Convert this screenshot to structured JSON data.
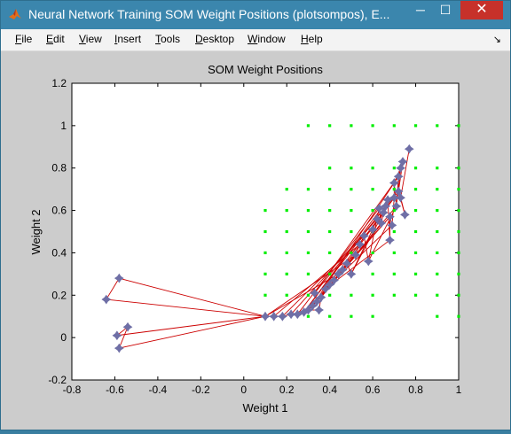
{
  "window": {
    "title": "Neural Network Training SOM Weight Positions (plotsompos), E...",
    "minimize": "─",
    "maximize": "☐",
    "close": "✕"
  },
  "menu": {
    "items": [
      {
        "key": "F",
        "rest": "ile"
      },
      {
        "key": "E",
        "rest": "dit"
      },
      {
        "key": "V",
        "rest": "iew"
      },
      {
        "key": "I",
        "rest": "nsert"
      },
      {
        "key": "T",
        "rest": "ools"
      },
      {
        "key": "D",
        "rest": "esktop"
      },
      {
        "key": "W",
        "rest": "indow"
      },
      {
        "key": "H",
        "rest": "elp"
      }
    ],
    "corner_arrow": "↘"
  },
  "chart_data": {
    "type": "scatter",
    "title": "SOM Weight Positions",
    "xlabel": "Weight 1",
    "ylabel": "Weight 2",
    "xlim": [
      -0.8,
      1
    ],
    "ylim": [
      -0.2,
      1.2
    ],
    "xticks": [
      "-0.8",
      "-0.6",
      "-0.4",
      "-0.2",
      "0",
      "0.2",
      "0.4",
      "0.6",
      "0.8",
      "1"
    ],
    "yticks": [
      "-0.2",
      "0",
      "0.2",
      "0.4",
      "0.6",
      "0.8",
      "1",
      "1.2"
    ],
    "colors": {
      "inputs": "#00ee00",
      "neurons": "#6f6fa6",
      "links": "#cc0000"
    },
    "input_points": [
      [
        0.3,
        1.0
      ],
      [
        0.4,
        1.0
      ],
      [
        0.5,
        1.0
      ],
      [
        0.6,
        1.0
      ],
      [
        0.7,
        1.0
      ],
      [
        0.8,
        1.0
      ],
      [
        0.9,
        1.0
      ],
      [
        1.0,
        1.0
      ],
      [
        0.4,
        0.8
      ],
      [
        0.5,
        0.8
      ],
      [
        0.6,
        0.8
      ],
      [
        0.7,
        0.8
      ],
      [
        0.8,
        0.8
      ],
      [
        0.9,
        0.8
      ],
      [
        1.0,
        0.8
      ],
      [
        0.2,
        0.7
      ],
      [
        0.3,
        0.7
      ],
      [
        0.4,
        0.7
      ],
      [
        0.5,
        0.7
      ],
      [
        0.6,
        0.7
      ],
      [
        0.7,
        0.7
      ],
      [
        0.8,
        0.7
      ],
      [
        0.9,
        0.7
      ],
      [
        1.0,
        0.7
      ],
      [
        0.1,
        0.6
      ],
      [
        0.2,
        0.6
      ],
      [
        0.3,
        0.6
      ],
      [
        0.4,
        0.6
      ],
      [
        0.5,
        0.6
      ],
      [
        0.6,
        0.6
      ],
      [
        0.7,
        0.6
      ],
      [
        0.8,
        0.6
      ],
      [
        0.9,
        0.6
      ],
      [
        1.0,
        0.6
      ],
      [
        0.1,
        0.5
      ],
      [
        0.2,
        0.5
      ],
      [
        0.3,
        0.5
      ],
      [
        0.4,
        0.5
      ],
      [
        0.5,
        0.5
      ],
      [
        0.6,
        0.5
      ],
      [
        0.7,
        0.5
      ],
      [
        0.8,
        0.5
      ],
      [
        0.9,
        0.5
      ],
      [
        1.0,
        0.5
      ],
      [
        0.1,
        0.4
      ],
      [
        0.2,
        0.4
      ],
      [
        0.3,
        0.4
      ],
      [
        0.4,
        0.4
      ],
      [
        0.5,
        0.4
      ],
      [
        0.6,
        0.4
      ],
      [
        0.7,
        0.4
      ],
      [
        0.8,
        0.4
      ],
      [
        0.9,
        0.4
      ],
      [
        1.0,
        0.4
      ],
      [
        0.1,
        0.3
      ],
      [
        0.2,
        0.3
      ],
      [
        0.3,
        0.3
      ],
      [
        0.4,
        0.3
      ],
      [
        0.5,
        0.3
      ],
      [
        0.6,
        0.3
      ],
      [
        0.7,
        0.3
      ],
      [
        0.8,
        0.3
      ],
      [
        0.9,
        0.3
      ],
      [
        1.0,
        0.3
      ],
      [
        0.1,
        0.2
      ],
      [
        0.2,
        0.2
      ],
      [
        0.3,
        0.2
      ],
      [
        0.4,
        0.2
      ],
      [
        0.5,
        0.2
      ],
      [
        0.6,
        0.2
      ],
      [
        0.7,
        0.2
      ],
      [
        0.8,
        0.2
      ],
      [
        0.9,
        0.2
      ],
      [
        1.0,
        0.2
      ],
      [
        0.3,
        0.1
      ],
      [
        0.4,
        0.1
      ],
      [
        0.5,
        0.1
      ],
      [
        0.6,
        0.1
      ],
      [
        0.9,
        0.1
      ],
      [
        1.0,
        0.1
      ]
    ],
    "neurons": [
      [
        -0.58,
        0.28
      ],
      [
        -0.64,
        0.18
      ],
      [
        -0.59,
        0.01
      ],
      [
        -0.54,
        0.05
      ],
      [
        -0.58,
        -0.05
      ],
      [
        0.1,
        0.1
      ],
      [
        0.14,
        0.1
      ],
      [
        0.18,
        0.1
      ],
      [
        0.22,
        0.11
      ],
      [
        0.25,
        0.11
      ],
      [
        0.28,
        0.12
      ],
      [
        0.3,
        0.13
      ],
      [
        0.32,
        0.15
      ],
      [
        0.34,
        0.17
      ],
      [
        0.33,
        0.21
      ],
      [
        0.35,
        0.13
      ],
      [
        0.36,
        0.19
      ],
      [
        0.38,
        0.23
      ],
      [
        0.4,
        0.25
      ],
      [
        0.42,
        0.27
      ],
      [
        0.44,
        0.3
      ],
      [
        0.46,
        0.32
      ],
      [
        0.48,
        0.35
      ],
      [
        0.5,
        0.3
      ],
      [
        0.52,
        0.39
      ],
      [
        0.54,
        0.44
      ],
      [
        0.56,
        0.48
      ],
      [
        0.58,
        0.36
      ],
      [
        0.6,
        0.51
      ],
      [
        0.62,
        0.56
      ],
      [
        0.63,
        0.61
      ],
      [
        0.64,
        0.54
      ],
      [
        0.65,
        0.59
      ],
      [
        0.66,
        0.62
      ],
      [
        0.67,
        0.65
      ],
      [
        0.68,
        0.46
      ],
      [
        0.68,
        0.57
      ],
      [
        0.69,
        0.53
      ],
      [
        0.7,
        0.66
      ],
      [
        0.7,
        0.73
      ],
      [
        0.71,
        0.62
      ],
      [
        0.72,
        0.76
      ],
      [
        0.73,
        0.8
      ],
      [
        0.74,
        0.83
      ],
      [
        0.72,
        0.69
      ],
      [
        0.75,
        0.58
      ],
      [
        0.73,
        0.66
      ],
      [
        0.77,
        0.89
      ]
    ],
    "links": [
      [
        0,
        1
      ],
      [
        0,
        5
      ],
      [
        1,
        5
      ],
      [
        2,
        3
      ],
      [
        2,
        5
      ],
      [
        3,
        4
      ],
      [
        4,
        5
      ],
      [
        5,
        6
      ],
      [
        6,
        7
      ],
      [
        7,
        8
      ],
      [
        8,
        9
      ],
      [
        9,
        10
      ],
      [
        10,
        11
      ],
      [
        11,
        12
      ],
      [
        12,
        13
      ],
      [
        13,
        14
      ],
      [
        11,
        15
      ],
      [
        15,
        16
      ],
      [
        16,
        17
      ],
      [
        17,
        18
      ],
      [
        18,
        19
      ],
      [
        19,
        20
      ],
      [
        20,
        21
      ],
      [
        21,
        22
      ],
      [
        22,
        23
      ],
      [
        22,
        24
      ],
      [
        24,
        25
      ],
      [
        25,
        26
      ],
      [
        26,
        27
      ],
      [
        26,
        28
      ],
      [
        28,
        29
      ],
      [
        29,
        30
      ],
      [
        30,
        31
      ],
      [
        31,
        32
      ],
      [
        32,
        33
      ],
      [
        33,
        34
      ],
      [
        34,
        35
      ],
      [
        35,
        36
      ],
      [
        36,
        37
      ],
      [
        37,
        38
      ],
      [
        38,
        39
      ],
      [
        39,
        40
      ],
      [
        40,
        41
      ],
      [
        41,
        42
      ],
      [
        42,
        43
      ],
      [
        43,
        44
      ],
      [
        44,
        45
      ],
      [
        45,
        46
      ],
      [
        46,
        47
      ],
      [
        39,
        41
      ],
      [
        39,
        42
      ],
      [
        40,
        42
      ],
      [
        5,
        20
      ],
      [
        5,
        24
      ],
      [
        6,
        25
      ],
      [
        7,
        26
      ],
      [
        8,
        29
      ],
      [
        9,
        30
      ],
      [
        10,
        33
      ],
      [
        10,
        34
      ],
      [
        11,
        36
      ],
      [
        12,
        38
      ],
      [
        12,
        39
      ],
      [
        13,
        40
      ],
      [
        14,
        44
      ],
      [
        14,
        41
      ],
      [
        16,
        31
      ],
      [
        17,
        35
      ],
      [
        18,
        37
      ],
      [
        19,
        38
      ],
      [
        21,
        36
      ],
      [
        23,
        32
      ],
      [
        23,
        28
      ],
      [
        27,
        30
      ],
      [
        27,
        40
      ]
    ]
  }
}
